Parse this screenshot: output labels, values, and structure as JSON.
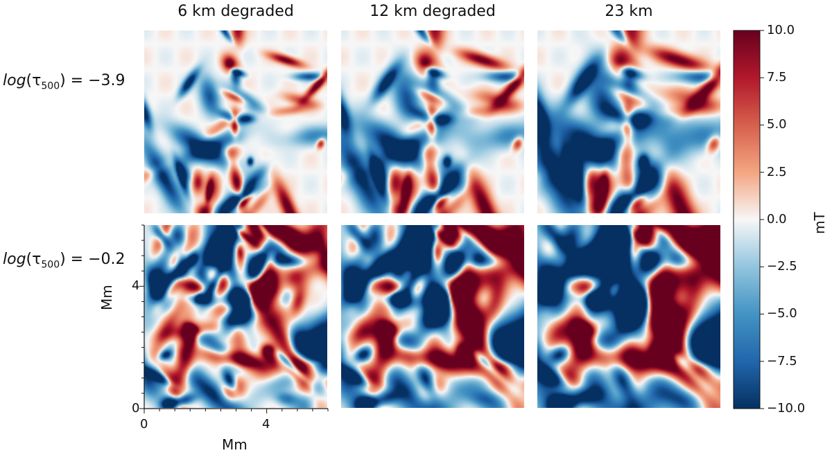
{
  "chart_data": {
    "type": "heatmap",
    "columns": [
      "6 km degraded",
      "12 km degraded",
      "23 km"
    ],
    "rows": [
      {
        "label_prefix": "log",
        "label_tex": "(τ",
        "label_sub": "500",
        "label_suffix": ") = −3.9"
      },
      {
        "label_prefix": "log",
        "label_tex": "(τ",
        "label_sub": "500",
        "label_suffix": ") = −0.2"
      }
    ],
    "xlabel": "Mm",
    "ylabel": "Mm",
    "xticks": [
      "0",
      "4"
    ],
    "yticks": [
      "0",
      "4"
    ],
    "xlim": [
      0,
      6
    ],
    "ylim": [
      0,
      6
    ],
    "colorbar": {
      "label": "mT",
      "min": -10.0,
      "max": 10.0,
      "ticks": [
        "10.0",
        "7.5",
        "5.0",
        "2.5",
        "0.0",
        "−2.5",
        "−5.0",
        "−7.5",
        "−10.0"
      ],
      "colormap": "RdBu_r"
    },
    "colors": {
      "positive": "#67001f",
      "negative": "#053061",
      "zero": "#f7f7f7"
    }
  }
}
